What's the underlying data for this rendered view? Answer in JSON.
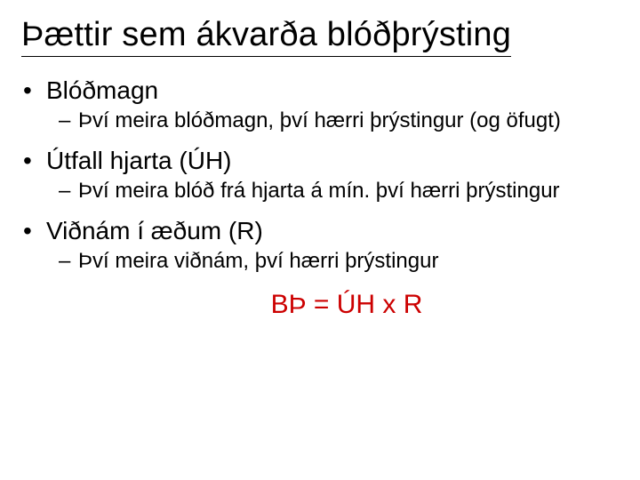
{
  "title": "Þættir sem ákvarða blóðþrýsting",
  "bullets": [
    {
      "label": "Blóðmagn",
      "sub": [
        "Því meira blóðmagn, því hærri þrýstingur (og öfugt)"
      ]
    },
    {
      "label": "Útfall hjarta (ÚH)",
      "sub": [
        "Því meira blóð frá hjarta á mín. því hærri þrýstingur"
      ]
    },
    {
      "label": "Viðnám í æðum (R)",
      "sub": [
        "Því meira viðnám, því hærri þrýstingur"
      ]
    }
  ],
  "formula": "BÞ = ÚH x R",
  "colors": {
    "text": "#000000",
    "background": "#ffffff",
    "formula": "#cc0000"
  },
  "typography": {
    "title_fontsize": 38,
    "level1_fontsize": 28,
    "level2_fontsize": 24,
    "formula_fontsize": 30,
    "font_family": "Arial"
  }
}
